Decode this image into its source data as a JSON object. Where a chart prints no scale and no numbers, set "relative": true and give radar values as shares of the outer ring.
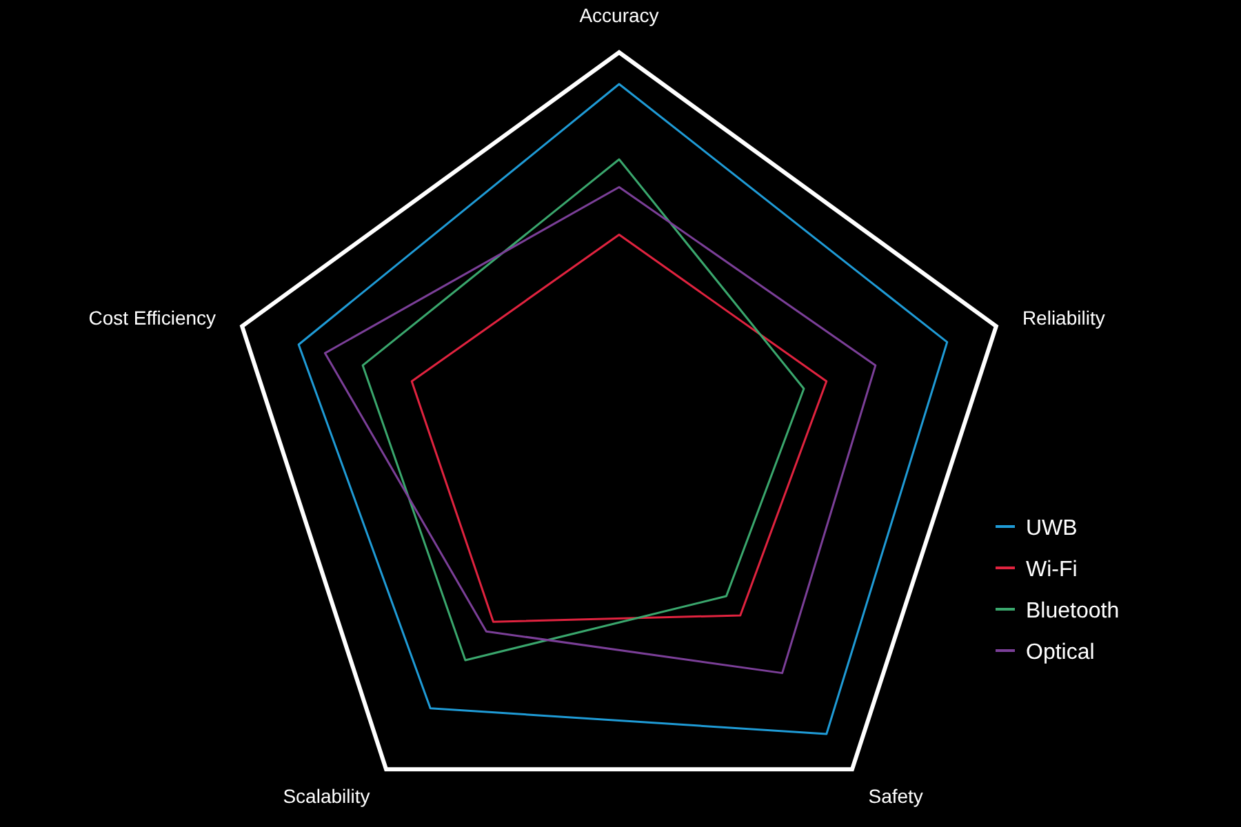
{
  "chart_data": {
    "type": "radar",
    "relative": true,
    "categories": [
      "Accuracy",
      "Reliability",
      "Safety",
      "Scalability",
      "Cost Efficiency"
    ],
    "legend": "right",
    "series": [
      {
        "name": "UWB",
        "color": "#1f9bd6",
        "values": [
          0.92,
          0.87,
          0.89,
          0.81,
          0.85
        ]
      },
      {
        "name": "Wi-Fi",
        "color": "#e0233f",
        "values": [
          0.54,
          0.55,
          0.52,
          0.54,
          0.55
        ]
      },
      {
        "name": "Bluetooth",
        "color": "#3aa76d",
        "values": [
          0.73,
          0.49,
          0.46,
          0.66,
          0.68
        ]
      },
      {
        "name": "Optical",
        "color": "#7b3f98",
        "values": [
          0.66,
          0.68,
          0.7,
          0.57,
          0.78
        ]
      }
    ]
  }
}
